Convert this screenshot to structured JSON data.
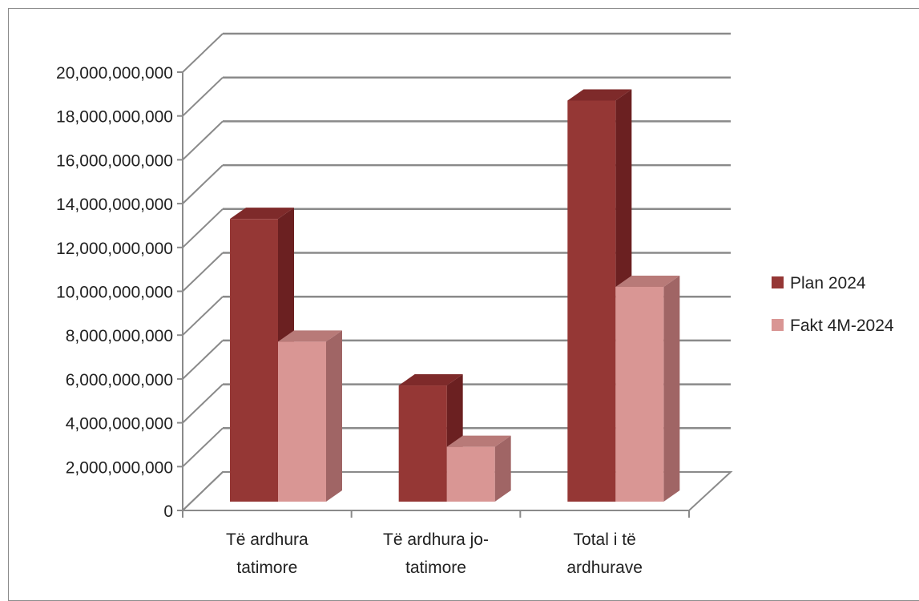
{
  "chart_data": {
    "type": "bar",
    "categories": [
      [
        "Të ardhura",
        "tatimore"
      ],
      [
        "Të ardhura jo-",
        "tatimore"
      ],
      [
        "Total i të",
        "ardhurave"
      ]
    ],
    "series": [
      {
        "name": "Plan 2024",
        "values": [
          12900000000,
          5300000000,
          18300000000
        ],
        "color": "#953735",
        "side": "#6b2021",
        "top": "#7e2a2a"
      },
      {
        "name": "Fakt 4M-2024",
        "values": [
          7300000000,
          2500000000,
          9800000000
        ],
        "color": "#d99694",
        "side": "#a06565",
        "top": "#b87a78"
      }
    ],
    "ylim": [
      0,
      20000000000
    ],
    "yticks": [
      "0",
      "2,000,000,000",
      "4,000,000,000",
      "6,000,000,000",
      "8,000,000,000",
      "10,000,000,000",
      "12,000,000,000",
      "14,000,000,000",
      "16,000,000,000",
      "18,000,000,000",
      "20,000,000,000"
    ],
    "grid": true,
    "legend_position": "right",
    "projection": "3d"
  }
}
